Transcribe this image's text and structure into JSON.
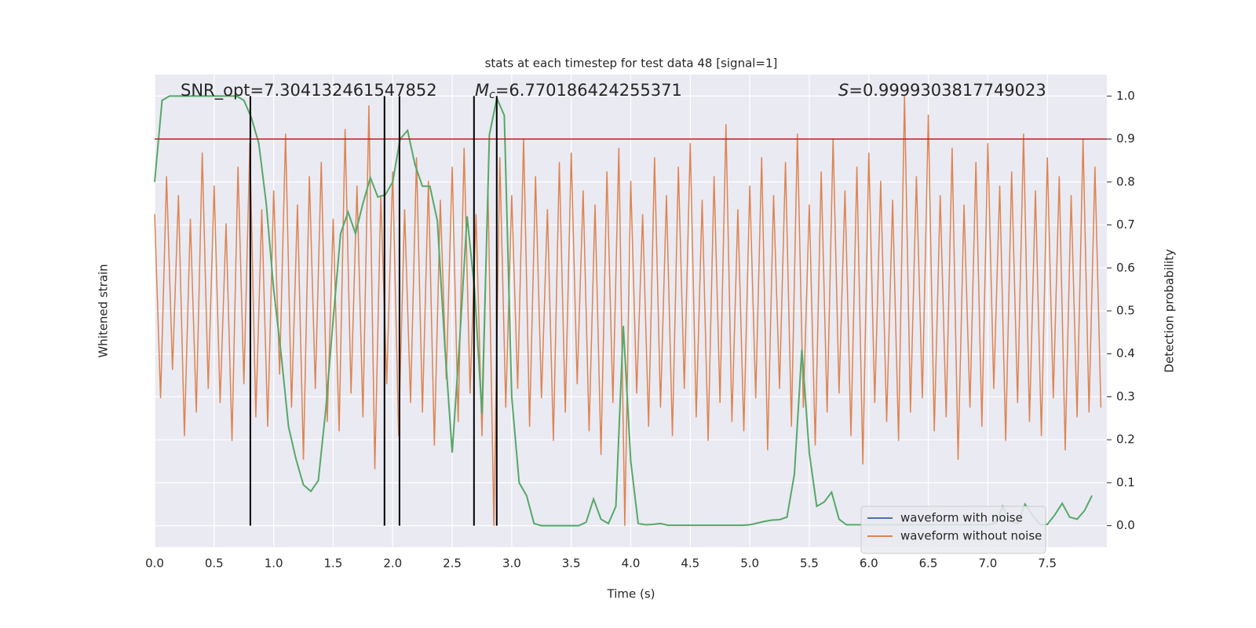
{
  "chart_data": {
    "type": "line",
    "title": "stats at each timestep for test data 48 [signal=1]",
    "xlabel": "Time (s)",
    "ylabel": "Whitened strain",
    "y2label": "Detection probability",
    "annotations": [
      "SNR_opt=7.304132461547852",
      "=6.770186424255371",
      "=0.9999303817749023"
    ],
    "annotation_symbols": [
      "M",
      "c",
      "S"
    ],
    "xlim": [
      0,
      8
    ],
    "ylim": [
      -5.25,
      4.75
    ],
    "y2lim": [
      -0.05,
      1.05
    ],
    "xticks": [
      {
        "value": 0,
        "label": "0.0"
      },
      {
        "value": 0.5,
        "label": "0.5"
      },
      {
        "value": 1,
        "label": "1.0"
      },
      {
        "value": 1.5,
        "label": "1.5"
      },
      {
        "value": 2,
        "label": "2.0"
      },
      {
        "value": 2.5,
        "label": "2.5"
      },
      {
        "value": 3,
        "label": "3.0"
      },
      {
        "value": 3.5,
        "label": "3.5"
      },
      {
        "value": 4,
        "label": "4.0"
      },
      {
        "value": 4.5,
        "label": "4.5"
      },
      {
        "value": 5,
        "label": "5.0"
      },
      {
        "value": 5.5,
        "label": "5.5"
      },
      {
        "value": 6,
        "label": "6.0"
      },
      {
        "value": 6.5,
        "label": "6.5"
      },
      {
        "value": 7,
        "label": "7.0"
      },
      {
        "value": 7.5,
        "label": "7.5"
      }
    ],
    "y2ticks": [
      {
        "value": 0,
        "label": "0.0"
      },
      {
        "value": 0.1,
        "label": "0.1"
      },
      {
        "value": 0.2,
        "label": "0.2"
      },
      {
        "value": 0.3,
        "label": "0.3"
      },
      {
        "value": 0.4,
        "label": "0.4"
      },
      {
        "value": 0.5,
        "label": "0.5"
      },
      {
        "value": 0.6,
        "label": "0.6"
      },
      {
        "value": 0.7,
        "label": "0.7"
      },
      {
        "value": 0.8,
        "label": "0.8"
      },
      {
        "value": 0.9,
        "label": "0.9"
      },
      {
        "value": 1,
        "label": "1.0"
      }
    ],
    "grid": true,
    "legend_loc": "lower right",
    "series": [
      {
        "name": "waveform with noise",
        "color": "#4c72b0"
      },
      {
        "name": "waveform without noise",
        "color": "#dd8452",
        "x": [
          0,
          0.05,
          0.1,
          0.15,
          0.2,
          0.25,
          0.3,
          0.35,
          0.4,
          0.45,
          0.5,
          0.55,
          0.6,
          0.65,
          0.7,
          0.75,
          0.8,
          0.85,
          0.9,
          0.95,
          1,
          1.05,
          1.1,
          1.15,
          1.2,
          1.25,
          1.3,
          1.35,
          1.4,
          1.45,
          1.5,
          1.55,
          1.6,
          1.65,
          1.7,
          1.75,
          1.8,
          1.85,
          1.9,
          1.95,
          2,
          2.05,
          2.1,
          2.15,
          2.2,
          2.25,
          2.3,
          2.35,
          2.4,
          2.45,
          2.5,
          2.55,
          2.6,
          2.65,
          2.7,
          2.75,
          2.8,
          2.85,
          2.9,
          2.95,
          3,
          3.05,
          3.1,
          3.15,
          3.2,
          3.25,
          3.3,
          3.35,
          3.4,
          3.45,
          3.5,
          3.55,
          3.6,
          3.65,
          3.7,
          3.75,
          3.8,
          3.85,
          3.9,
          3.95,
          4,
          4.05,
          4.1,
          4.15,
          4.2,
          4.25,
          4.3,
          4.35,
          4.4,
          4.45,
          4.5,
          4.55,
          4.6,
          4.65,
          4.7,
          4.75,
          4.8,
          4.85,
          4.9,
          4.95,
          5,
          5.05,
          5.1,
          5.15,
          5.2,
          5.25,
          5.3,
          5.35,
          5.4,
          5.45,
          5.5,
          5.55,
          5.6,
          5.65,
          5.7,
          5.75,
          5.8,
          5.85,
          5.9,
          5.95,
          6,
          6.05,
          6.1,
          6.15,
          6.2,
          6.25,
          6.3,
          6.35,
          6.4,
          6.45,
          6.5,
          6.55,
          6.6,
          6.65,
          6.7,
          6.75,
          6.8,
          6.85,
          6.9,
          6.95,
          7,
          7.05,
          7.1,
          7.15,
          7.2,
          7.25,
          7.3,
          7.35,
          7.4,
          7.45,
          7.5,
          7.55,
          7.6,
          7.65,
          7.7,
          7.75,
          7.8,
          7.85,
          7.9,
          7.95
        ],
        "values": [
          1.8,
          -2.1,
          2.6,
          -1.5,
          2.2,
          -2.9,
          1.7,
          -2.4,
          3.1,
          -1.9,
          2.4,
          -2.2,
          1.6,
          -3.0,
          2.8,
          -1.8,
          3.3,
          -2.5,
          1.9,
          -2.7,
          2.3,
          -1.6,
          3.5,
          -2.3,
          2.0,
          -3.4,
          2.6,
          -1.9,
          2.9,
          -2.6,
          1.7,
          -2.8,
          3.6,
          -2.0,
          2.4,
          -2.5,
          4.1,
          -3.6,
          2.2,
          -1.8,
          2.7,
          -2.9,
          1.9,
          -2.2,
          3.0,
          -2.4,
          2.5,
          -3.1,
          2.1,
          -1.7,
          2.8,
          -2.6,
          3.2,
          -2.0,
          1.8,
          -2.9,
          2.4,
          -4.8,
          3.0,
          -2.3,
          2.2,
          -1.9,
          3.4,
          -2.7,
          2.6,
          -2.1,
          1.9,
          -3.0,
          2.9,
          -2.4,
          3.1,
          -1.8,
          2.3,
          -2.8,
          2.0,
          -3.3,
          2.7,
          -2.2,
          3.2,
          -4.8,
          2.5,
          -2.0,
          1.8,
          -2.7,
          3.0,
          -2.3,
          2.2,
          -2.9,
          2.8,
          -1.9,
          3.3,
          -2.5,
          2.1,
          -3.0,
          2.6,
          -2.2,
          3.7,
          -2.6,
          1.9,
          -2.8,
          2.4,
          -2.1,
          3.0,
          -3.2,
          2.2,
          -1.9,
          2.9,
          -2.7,
          3.5,
          -2.3,
          2.0,
          -3.1,
          2.7,
          -2.4,
          3.4,
          -2.0,
          2.3,
          -2.9,
          2.8,
          -3.5,
          3.1,
          -2.2,
          2.5,
          -2.6,
          2.1,
          -3.0,
          4.3,
          -2.4,
          2.6,
          -2.1,
          3.9,
          -2.8,
          2.2,
          -2.5,
          3.2,
          -3.4,
          2.0,
          -2.3,
          2.9,
          -2.7,
          3.3,
          -1.9,
          2.4,
          -3.0,
          2.7,
          -2.2,
          3.5,
          -2.6,
          2.3,
          -2.9,
          3.0,
          -2.1,
          2.6,
          -3.2,
          2.2,
          -2.5,
          3.4,
          -2.4,
          2.8,
          -2.3
        ]
      },
      {
        "color": "#55a868",
        "axis": "y2",
        "x": [
          0,
          0.0625,
          0.125,
          0.1875,
          0.25,
          0.3125,
          0.375,
          0.4375,
          0.5,
          0.5625,
          0.625,
          0.6875,
          0.75,
          0.8125,
          0.875,
          0.9375,
          1,
          1.0625,
          1.125,
          1.1875,
          1.25,
          1.3125,
          1.375,
          1.4375,
          1.5,
          1.5625,
          1.625,
          1.6875,
          1.75,
          1.8125,
          1.875,
          1.9375,
          2,
          2.0625,
          2.125,
          2.1875,
          2.25,
          2.3125,
          2.375,
          2.4375,
          2.5,
          2.5625,
          2.625,
          2.6875,
          2.75,
          2.8125,
          2.875,
          2.9375,
          3,
          3.0625,
          3.125,
          3.1875,
          3.25,
          3.3125,
          3.375,
          3.4375,
          3.5,
          3.5625,
          3.625,
          3.6875,
          3.75,
          3.8125,
          3.875,
          3.9375,
          4,
          4.0625,
          4.125,
          4.1875,
          4.25,
          4.3125,
          4.375,
          4.4375,
          4.5,
          4.5625,
          4.625,
          4.6875,
          4.75,
          4.8125,
          4.875,
          4.9375,
          5,
          5.0625,
          5.125,
          5.1875,
          5.25,
          5.3125,
          5.375,
          5.4375,
          5.5,
          5.5625,
          5.625,
          5.6875,
          5.75,
          5.8125,
          5.875,
          5.9375,
          6,
          6.0625,
          6.125,
          6.1875,
          6.25,
          6.3125,
          6.375,
          6.4375,
          6.5,
          6.5625,
          6.625,
          6.6875,
          6.75,
          6.8125,
          6.875,
          6.9375,
          7,
          7.0625,
          7.125,
          7.1875,
          7.25,
          7.3125,
          7.375,
          7.4375,
          7.5,
          7.5625,
          7.625,
          7.6875,
          7.75,
          7.8125,
          7.875
        ],
        "values": [
          0.8,
          0.99,
          1,
          1,
          1,
          1,
          1,
          1,
          1,
          1,
          1,
          1,
          0.99,
          0.95,
          0.89,
          0.75,
          0.55,
          0.4,
          0.23,
          0.155,
          0.095,
          0.08,
          0.105,
          0.27,
          0.48,
          0.68,
          0.73,
          0.68,
          0.75,
          0.81,
          0.765,
          0.77,
          0.8,
          0.9,
          0.92,
          0.84,
          0.79,
          0.79,
          0.71,
          0.42,
          0.17,
          0.43,
          0.72,
          0.55,
          0.26,
          0.91,
          0.995,
          0.955,
          0.3,
          0.1,
          0.07,
          0.005,
          0.0,
          0.0,
          0.0,
          0.0,
          0.0,
          0.0,
          0.008,
          0.062,
          0.015,
          0.005,
          0.045,
          0.465,
          0.15,
          0.005,
          0.002,
          0.003,
          0.005,
          0.001,
          0.001,
          0.001,
          0.001,
          0.001,
          0.001,
          0.001,
          0.001,
          0.001,
          0.001,
          0.001,
          0.002,
          0.006,
          0.01,
          0.013,
          0.014,
          0.02,
          0.12,
          0.41,
          0.17,
          0.045,
          0.055,
          0.078,
          0.015,
          0.002,
          0.002,
          0.002,
          0.002,
          0.002,
          0.002,
          0.002,
          0.002,
          0.002,
          0.002,
          0.002,
          0.002,
          0.002,
          0.002,
          0.002,
          0.002,
          0.002,
          0.002,
          0.002,
          0.002,
          0.005,
          0.045,
          0.01,
          0.005,
          0.05,
          0.025,
          0.003,
          0.003,
          0.025,
          0.052,
          0.02,
          0.015,
          0.035,
          0.07
        ]
      }
    ],
    "threshold": {
      "value": 0.9,
      "color": "#b22222"
    },
    "vlines": {
      "x": [
        0.804,
        1.931,
        2.057,
        2.683,
        2.874
      ],
      "color": "#000000"
    }
  }
}
